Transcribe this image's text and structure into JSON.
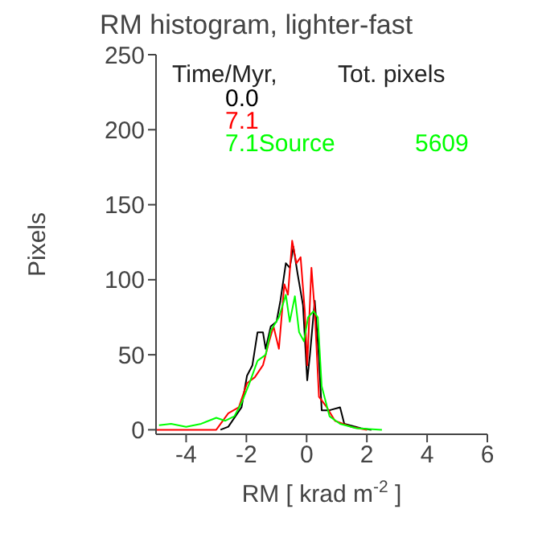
{
  "chart_data": {
    "type": "line",
    "title": "RM histogram, lighter-fast",
    "xlabel": "RM [ krad m$^{-2}$ ]",
    "ylabel": "Pixels",
    "legend_title": "Time/Myr,",
    "annotations": [
      "Tot. pixels",
      "5609"
    ],
    "xlim": [
      -5,
      6
    ],
    "xticks": [
      -4,
      -2,
      0,
      2,
      4,
      6
    ],
    "ylim": [
      -3,
      250
    ],
    "yticks": [
      0,
      50,
      100,
      150,
      200,
      250
    ],
    "legend": "top",
    "series": [
      {
        "name": "0.0",
        "color": "#000000",
        "x": [
          -2.86,
          -2.6,
          -2.16,
          -1.98,
          -1.8,
          -1.63,
          -1.45,
          -1.36,
          -1.19,
          -1.0,
          -0.87,
          -0.69,
          -0.56,
          -0.44,
          -0.3,
          -0.12,
          0.02,
          0.11,
          0.27,
          0.41,
          0.5,
          0.76,
          1.11,
          1.25,
          1.8,
          2.15
        ],
        "values": [
          0,
          2,
          15,
          36,
          43,
          65,
          65,
          54,
          69,
          72,
          86,
          111,
          108,
          122,
          104,
          83,
          33,
          50,
          86,
          48,
          13,
          13,
          15,
          4,
          1,
          0
        ]
      },
      {
        "name": "7.1",
        "color": "#ff0000",
        "x": [
          -5,
          -3.0,
          -2.6,
          -2.25,
          -1.98,
          -1.72,
          -1.45,
          -1.27,
          -1.1,
          -0.92,
          -0.74,
          -0.62,
          -0.48,
          -0.34,
          -0.2,
          -0.06,
          0.02,
          0.16,
          0.27,
          0.41,
          0.67,
          0.94,
          1.47,
          2.0
        ],
        "values": [
          0,
          0,
          11,
          15,
          31,
          35,
          43,
          57,
          69,
          54,
          97,
          90,
          126,
          111,
          115,
          79,
          43,
          108,
          79,
          22,
          15,
          6,
          2,
          0
        ]
      },
      {
        "name": "7.1Source",
        "color": "#00ff00",
        "x": [
          -4.9,
          -4.5,
          -4.0,
          -3.5,
          -3.0,
          -2.7,
          -2.4,
          -2.16,
          -1.9,
          -1.63,
          -1.36,
          -1.19,
          -0.92,
          -0.69,
          -0.56,
          -0.39,
          -0.25,
          -0.09,
          0.05,
          0.23,
          0.37,
          0.5,
          0.76,
          1.11,
          1.65,
          2.5
        ],
        "values": [
          3,
          4,
          2,
          4,
          8,
          6,
          9,
          18,
          31,
          46,
          50,
          66,
          75,
          90,
          72,
          89,
          65,
          59,
          75,
          79,
          75,
          29,
          9,
          4,
          1,
          0
        ]
      }
    ]
  }
}
